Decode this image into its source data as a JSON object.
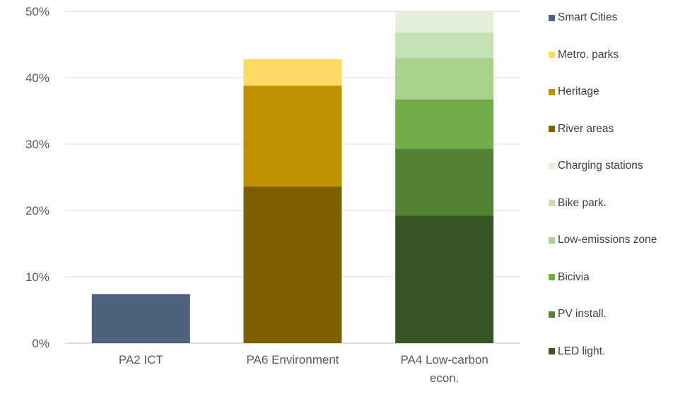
{
  "chart_data": {
    "type": "bar",
    "stacked": true,
    "categories": [
      "PA2 ICT",
      "PA6 Environment",
      "PA4 Low-carbon econ."
    ],
    "category_lines": [
      [
        "PA2 ICT"
      ],
      [
        "PA6 Environment"
      ],
      [
        "PA4 Low-carbon",
        "econ."
      ]
    ],
    "ylim": [
      0,
      50
    ],
    "yticks": [
      0,
      10,
      20,
      30,
      40,
      50
    ],
    "ytick_labels": [
      "0%",
      "10%",
      "20%",
      "30%",
      "40%",
      "50%"
    ],
    "grid": true,
    "legend_position": "right",
    "series": [
      {
        "name": "LED light.",
        "color": "#375623",
        "values": [
          0,
          0,
          19.2
        ]
      },
      {
        "name": "PV install.",
        "color": "#548235",
        "values": [
          0,
          0,
          10.1
        ]
      },
      {
        "name": "Bicivia",
        "color": "#70AD47",
        "values": [
          0,
          0,
          7.4
        ]
      },
      {
        "name": "Low-emissions zone",
        "color": "#A9D18E",
        "values": [
          0,
          0,
          6.3
        ]
      },
      {
        "name": "Bike park.",
        "color": "#C5E0B4",
        "values": [
          0,
          0,
          3.8
        ]
      },
      {
        "name": "Charging stations",
        "color": "#E2F0D9",
        "values": [
          0,
          0,
          3.2
        ]
      },
      {
        "name": "River areas",
        "color": "#7F6000",
        "values": [
          0,
          23.6,
          0
        ]
      },
      {
        "name": "Heritage",
        "color": "#BF9000",
        "values": [
          0,
          15.2,
          0
        ]
      },
      {
        "name": "Metro. parks",
        "color": "#FFD966",
        "values": [
          0,
          4.0,
          0
        ]
      },
      {
        "name": "Smart Cities",
        "color": "#4E627D",
        "values": [
          7.4,
          0,
          0
        ]
      }
    ],
    "legend_order": [
      "Smart Cities",
      "Metro. parks",
      "Heritage",
      "River areas",
      "Charging stations",
      "Bike park.",
      "Low-emissions zone",
      "Bicivia",
      "PV install.",
      "LED light."
    ]
  }
}
